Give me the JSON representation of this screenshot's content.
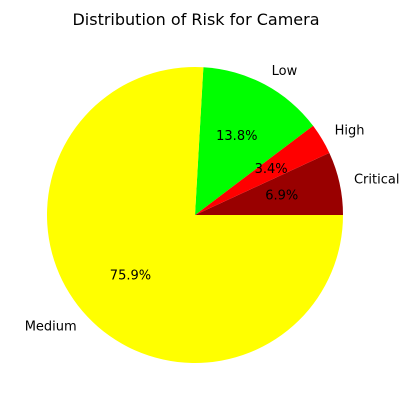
{
  "chart_data": {
    "type": "pie",
    "title": "Distribution of Risk for Camera",
    "categories": [
      "Critical",
      "High",
      "Low",
      "Medium"
    ],
    "values": [
      6.9,
      3.4,
      13.8,
      75.9
    ],
    "percent_labels": [
      "6.9%",
      "3.4%",
      "13.8%",
      "75.9%"
    ],
    "colors": [
      "#990000",
      "#ff0000",
      "#00ff00",
      "#ffff00"
    ],
    "start_angle_deg": 0,
    "direction": "counterclockwise",
    "legend": "none"
  }
}
